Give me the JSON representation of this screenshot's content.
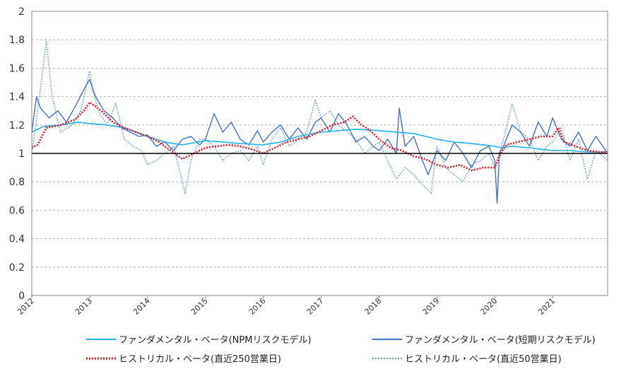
{
  "chart_data": {
    "type": "line",
    "title": "",
    "xlabel": "",
    "ylabel": "",
    "xlim": [
      2012,
      2021.95
    ],
    "ylim": [
      0,
      2
    ],
    "yticks": [
      "0",
      "0.2",
      "0.4",
      "0.6",
      "0.8",
      "1",
      "1.2",
      "1.4",
      "1.6",
      "1.8",
      "2"
    ],
    "xticks": [
      "2012",
      "2013",
      "2014",
      "2015",
      "2016",
      "2017",
      "2018",
      "2019",
      "2020",
      "2021"
    ],
    "grid": "horizontal-dashed",
    "reference_line": 1,
    "legend_position": "bottom",
    "series": [
      {
        "name": "ファンダメンタル・ベータ(NPMリスクモデル)",
        "color": "#1fb3e6",
        "style": "solid",
        "x": [
          2012.0,
          2012.2,
          2012.5,
          2012.8,
          2013.0,
          2013.3,
          2013.6,
          2014.0,
          2014.3,
          2014.6,
          2015.0,
          2015.3,
          2015.6,
          2016.0,
          2016.3,
          2016.6,
          2017.0,
          2017.3,
          2017.6,
          2018.0,
          2018.3,
          2018.6,
          2019.0,
          2019.3,
          2019.6,
          2020.0,
          2020.1,
          2020.3,
          2020.6,
          2021.0,
          2021.3,
          2021.6,
          2021.95
        ],
        "y": [
          1.15,
          1.19,
          1.2,
          1.22,
          1.21,
          1.2,
          1.18,
          1.12,
          1.08,
          1.06,
          1.09,
          1.08,
          1.07,
          1.06,
          1.08,
          1.12,
          1.15,
          1.16,
          1.17,
          1.16,
          1.15,
          1.14,
          1.1,
          1.08,
          1.07,
          1.05,
          1.04,
          1.05,
          1.04,
          1.02,
          1.02,
          1.01,
          1.01
        ]
      },
      {
        "name": "ファンダメンタル・ベータ(短期リスクモデル)",
        "color": "#4472c4",
        "style": "solid",
        "x": [
          2012.0,
          2012.08,
          2012.15,
          2012.3,
          2012.45,
          2012.6,
          2012.75,
          2012.9,
          2013.0,
          2013.1,
          2013.25,
          2013.4,
          2013.55,
          2013.7,
          2013.85,
          2014.0,
          2014.15,
          2014.3,
          2014.45,
          2014.6,
          2014.75,
          2014.9,
          2015.0,
          2015.15,
          2015.3,
          2015.45,
          2015.6,
          2015.75,
          2015.9,
          2016.0,
          2016.15,
          2016.3,
          2016.45,
          2016.6,
          2016.75,
          2016.9,
          2017.0,
          2017.15,
          2017.3,
          2017.45,
          2017.6,
          2017.75,
          2017.9,
          2018.0,
          2018.15,
          2018.3,
          2018.35,
          2018.45,
          2018.6,
          2018.75,
          2018.85,
          2019.0,
          2019.15,
          2019.3,
          2019.45,
          2019.6,
          2019.75,
          2019.9,
          2020.0,
          2020.04,
          2020.08,
          2020.15,
          2020.3,
          2020.45,
          2020.6,
          2020.75,
          2020.9,
          2021.0,
          2021.15,
          2021.3,
          2021.45,
          2021.6,
          2021.75,
          2021.95
        ],
        "y": [
          1.15,
          1.4,
          1.32,
          1.25,
          1.3,
          1.22,
          1.33,
          1.45,
          1.52,
          1.4,
          1.3,
          1.25,
          1.18,
          1.15,
          1.12,
          1.13,
          1.05,
          1.08,
          1.02,
          1.1,
          1.12,
          1.06,
          1.1,
          1.28,
          1.15,
          1.22,
          1.1,
          1.06,
          1.16,
          1.08,
          1.15,
          1.2,
          1.1,
          1.18,
          1.1,
          1.22,
          1.25,
          1.15,
          1.28,
          1.2,
          1.08,
          1.12,
          1.05,
          1.02,
          1.1,
          1.0,
          1.32,
          1.05,
          1.12,
          0.95,
          0.85,
          1.02,
          0.95,
          1.08,
          1.0,
          0.9,
          1.02,
          1.05,
          0.95,
          0.65,
          1.0,
          1.05,
          1.2,
          1.15,
          1.05,
          1.22,
          1.12,
          1.25,
          1.1,
          1.05,
          1.15,
          1.02,
          1.12,
          1.0
        ]
      },
      {
        "name": "ヒストリカル・ベータ(直近250営業日)",
        "color": "#e6141e",
        "style": "dotted",
        "x": [
          2012.0,
          2012.1,
          2012.25,
          2012.5,
          2012.75,
          2012.9,
          2013.0,
          2013.2,
          2013.4,
          2013.6,
          2013.8,
          2014.0,
          2014.2,
          2014.4,
          2014.6,
          2014.8,
          2015.0,
          2015.2,
          2015.4,
          2015.6,
          2015.8,
          2016.0,
          2016.2,
          2016.4,
          2016.6,
          2016.8,
          2017.0,
          2017.2,
          2017.4,
          2017.55,
          2017.7,
          2017.85,
          2018.0,
          2018.2,
          2018.4,
          2018.6,
          2018.8,
          2019.0,
          2019.2,
          2019.4,
          2019.6,
          2019.8,
          2020.0,
          2020.1,
          2020.2,
          2020.4,
          2020.6,
          2020.8,
          2021.0,
          2021.1,
          2021.2,
          2021.4,
          2021.6,
          2021.8,
          2021.95
        ],
        "y": [
          1.04,
          1.06,
          1.18,
          1.2,
          1.24,
          1.3,
          1.36,
          1.3,
          1.22,
          1.18,
          1.15,
          1.12,
          1.08,
          1.02,
          0.96,
          1.0,
          1.04,
          1.05,
          1.06,
          1.05,
          1.03,
          1.0,
          1.04,
          1.08,
          1.1,
          1.12,
          1.16,
          1.2,
          1.22,
          1.26,
          1.2,
          1.16,
          1.1,
          1.04,
          1.02,
          0.98,
          0.96,
          0.92,
          0.9,
          0.92,
          0.88,
          0.9,
          0.9,
          1.0,
          1.06,
          1.08,
          1.1,
          1.12,
          1.12,
          1.18,
          1.08,
          1.05,
          1.02,
          1.01,
          1.01
        ]
      },
      {
        "name": "ヒストリカル・ベータ(直近50営業日)",
        "color": "#5b9bd5",
        "style": "dotted",
        "x": [
          2012.0,
          2012.1,
          2012.2,
          2012.25,
          2012.35,
          2012.5,
          2012.7,
          2012.85,
          2013.0,
          2013.05,
          2013.15,
          2013.3,
          2013.45,
          2013.6,
          2013.75,
          2013.9,
          2014.0,
          2014.15,
          2014.3,
          2014.45,
          2014.6,
          2014.65,
          2014.75,
          2014.9,
          2015.0,
          2015.15,
          2015.3,
          2015.45,
          2015.6,
          2015.75,
          2015.9,
          2016.0,
          2016.15,
          2016.3,
          2016.45,
          2016.6,
          2016.75,
          2016.9,
          2017.0,
          2017.15,
          2017.3,
          2017.45,
          2017.6,
          2017.75,
          2017.9,
          2018.0,
          2018.15,
          2018.3,
          2018.45,
          2018.6,
          2018.75,
          2018.9,
          2019.0,
          2019.15,
          2019.3,
          2019.45,
          2019.6,
          2019.75,
          2019.9,
          2020.0,
          2020.15,
          2020.3,
          2020.45,
          2020.6,
          2020.75,
          2020.9,
          2021.0,
          2021.15,
          2021.3,
          2021.45,
          2021.6,
          2021.75,
          2021.95
        ],
        "y": [
          1.0,
          1.3,
          1.62,
          1.8,
          1.4,
          1.15,
          1.2,
          1.3,
          1.58,
          1.45,
          1.3,
          1.2,
          1.35,
          1.1,
          1.05,
          1.02,
          0.92,
          0.95,
          1.0,
          1.05,
          0.8,
          0.72,
          0.95,
          1.1,
          1.1,
          1.05,
          0.95,
          1.0,
          1.02,
          0.95,
          1.05,
          0.92,
          1.1,
          1.18,
          1.05,
          1.1,
          1.15,
          1.38,
          1.25,
          1.3,
          1.2,
          1.15,
          1.1,
          1.0,
          1.05,
          1.08,
          0.95,
          0.82,
          0.9,
          0.85,
          0.78,
          0.72,
          1.05,
          0.9,
          0.85,
          0.8,
          0.92,
          0.95,
          1.0,
          0.9,
          1.1,
          1.35,
          1.15,
          1.1,
          0.95,
          1.05,
          1.08,
          1.18,
          0.95,
          1.1,
          0.82,
          1.02,
          0.95
        ]
      }
    ]
  }
}
